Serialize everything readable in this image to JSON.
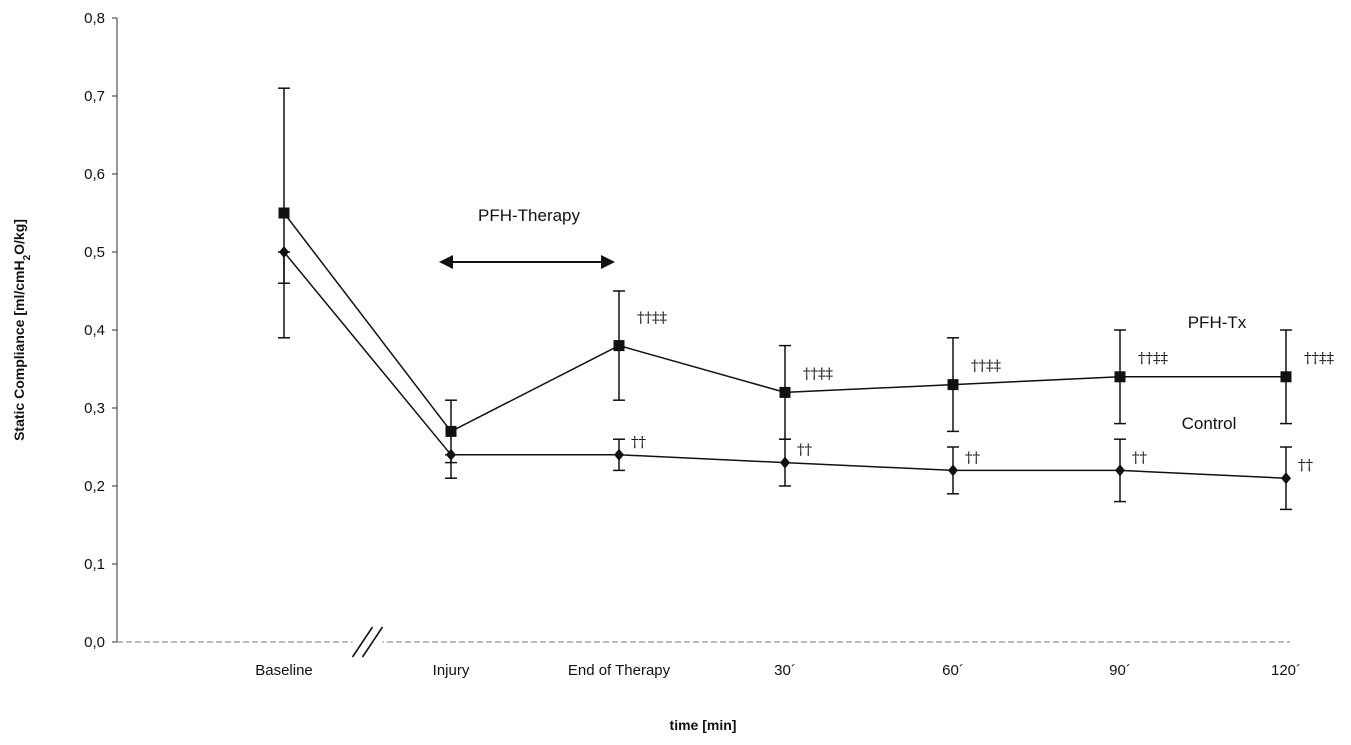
{
  "chart_data": {
    "type": "line",
    "xlabel": "time [min]",
    "ylabel_parts": [
      "Static Compliance [ml/cmH",
      "2",
      "O/kg]"
    ],
    "ylim": [
      0,
      0.8
    ],
    "y_ticks": [
      "0,0",
      "0,1",
      "0,2",
      "0,3",
      "0,4",
      "0,5",
      "0,6",
      "0,7",
      "0,8"
    ],
    "categories": [
      "Baseline",
      "Injury",
      "End of Therapy",
      "30´",
      "60´",
      "90´",
      "120´"
    ],
    "axis_break_after": "Baseline",
    "series": [
      {
        "name": "PFH-Tx",
        "marker": "square",
        "values": [
          0.55,
          0.27,
          0.38,
          0.32,
          0.33,
          0.34,
          0.34
        ],
        "error_upper": [
          0.71,
          0.31,
          0.45,
          0.38,
          0.39,
          0.4,
          0.4
        ],
        "error_lower": [
          0.46,
          0.23,
          0.31,
          0.26,
          0.27,
          0.28,
          0.28
        ],
        "significance": [
          "",
          "",
          "††‡‡",
          "††‡‡",
          "††‡‡",
          "††‡‡",
          "††‡‡"
        ]
      },
      {
        "name": "Control",
        "marker": "diamond",
        "values": [
          0.5,
          0.24,
          0.24,
          0.23,
          0.22,
          0.22,
          0.21
        ],
        "error_upper": [
          0.5,
          0.24,
          0.26,
          0.26,
          0.25,
          0.26,
          0.25
        ],
        "error_lower": [
          0.39,
          0.21,
          0.22,
          0.2,
          0.19,
          0.18,
          0.17
        ],
        "significance": [
          "",
          "",
          "††",
          "††",
          "††",
          "††",
          "††"
        ]
      }
    ],
    "annotations": {
      "therapy_label": "PFH-Therapy",
      "therapy_span": [
        "Injury",
        "End of Therapy"
      ]
    },
    "grid": false,
    "legend": "inline labels"
  }
}
